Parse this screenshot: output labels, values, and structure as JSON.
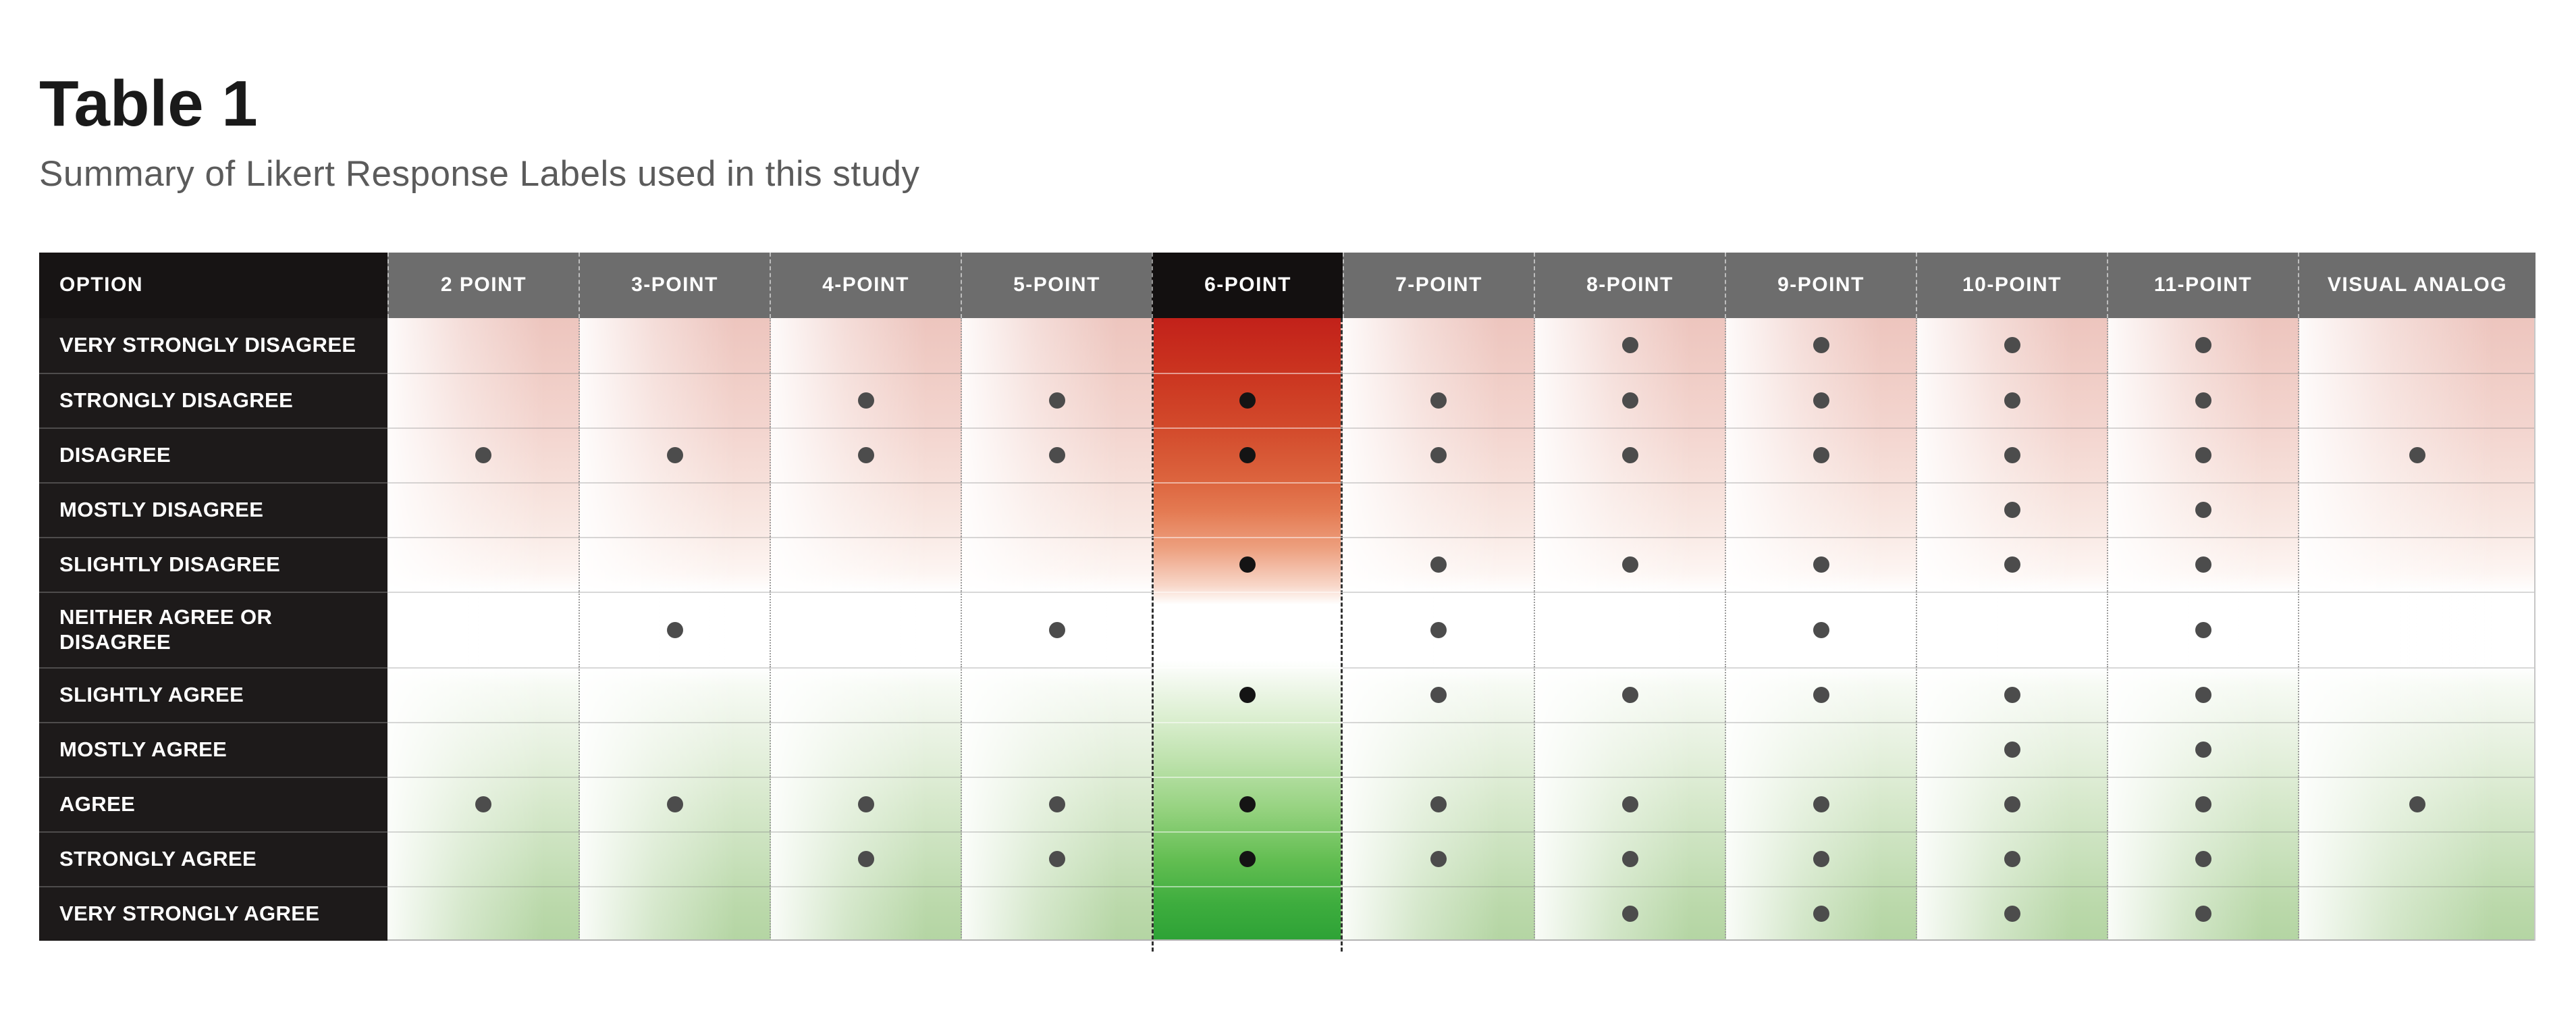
{
  "title": "Table 1",
  "subtitle": "Summary of Likert Response Labels used in this study",
  "table": {
    "option_header": "OPTION",
    "highlight_column": "6-POINT",
    "columns": [
      "2 POINT",
      "3-POINT",
      "4-POINT",
      "5-POINT",
      "6-POINT",
      "7-POINT",
      "8-POINT",
      "9-POINT",
      "10-POINT",
      "11-POINT",
      "VISUAL ANALOG"
    ],
    "rows": [
      {
        "label": "VERY STRONGLY DISAGREE",
        "dots": [
          0,
          0,
          0,
          0,
          0,
          0,
          1,
          1,
          1,
          1,
          0
        ]
      },
      {
        "label": "STRONGLY DISAGREE",
        "dots": [
          0,
          0,
          1,
          1,
          1,
          1,
          1,
          1,
          1,
          1,
          0
        ]
      },
      {
        "label": "DISAGREE",
        "dots": [
          1,
          1,
          1,
          1,
          1,
          1,
          1,
          1,
          1,
          1,
          1
        ]
      },
      {
        "label": "MOSTLY DISAGREE",
        "dots": [
          0,
          0,
          0,
          0,
          0,
          0,
          0,
          0,
          1,
          1,
          0
        ]
      },
      {
        "label": "SLIGHTLY DISAGREE",
        "dots": [
          0,
          0,
          0,
          0,
          1,
          1,
          1,
          1,
          1,
          1,
          0
        ]
      },
      {
        "label": "NEITHER AGREE OR DISAGREE",
        "dots": [
          0,
          1,
          0,
          1,
          0,
          1,
          0,
          1,
          0,
          1,
          0
        ]
      },
      {
        "label": "SLIGHTLY AGREE",
        "dots": [
          0,
          0,
          0,
          0,
          1,
          1,
          1,
          1,
          1,
          1,
          0
        ]
      },
      {
        "label": "MOSTLY AGREE",
        "dots": [
          0,
          0,
          0,
          0,
          0,
          0,
          0,
          0,
          1,
          1,
          0
        ]
      },
      {
        "label": "AGREE",
        "dots": [
          1,
          1,
          1,
          1,
          1,
          1,
          1,
          1,
          1,
          1,
          1
        ]
      },
      {
        "label": "STRONGLY AGREE",
        "dots": [
          0,
          0,
          1,
          1,
          1,
          1,
          1,
          1,
          1,
          1,
          0
        ]
      },
      {
        "label": "VERY STRONGLY AGREE",
        "dots": [
          0,
          0,
          0,
          0,
          0,
          0,
          1,
          1,
          1,
          1,
          0
        ]
      }
    ]
  },
  "chart_data": {
    "type": "table",
    "title": "Table 1",
    "subtitle": "Summary of Likert Response Labels used in this study",
    "columns": [
      "2 POINT",
      "3-POINT",
      "4-POINT",
      "5-POINT",
      "6-POINT",
      "7-POINT",
      "8-POINT",
      "9-POINT",
      "10-POINT",
      "11-POINT",
      "VISUAL ANALOG"
    ],
    "highlighted_column": "6-POINT",
    "rows": [
      {
        "option": "VERY STRONGLY DISAGREE",
        "used_in": [
          "8-POINT",
          "9-POINT",
          "10-POINT",
          "11-POINT"
        ]
      },
      {
        "option": "STRONGLY DISAGREE",
        "used_in": [
          "4-POINT",
          "5-POINT",
          "6-POINT",
          "7-POINT",
          "8-POINT",
          "9-POINT",
          "10-POINT",
          "11-POINT"
        ]
      },
      {
        "option": "DISAGREE",
        "used_in": [
          "2 POINT",
          "3-POINT",
          "4-POINT",
          "5-POINT",
          "6-POINT",
          "7-POINT",
          "8-POINT",
          "9-POINT",
          "10-POINT",
          "11-POINT",
          "VISUAL ANALOG"
        ]
      },
      {
        "option": "MOSTLY DISAGREE",
        "used_in": [
          "10-POINT",
          "11-POINT"
        ]
      },
      {
        "option": "SLIGHTLY DISAGREE",
        "used_in": [
          "6-POINT",
          "7-POINT",
          "8-POINT",
          "9-POINT",
          "10-POINT",
          "11-POINT"
        ]
      },
      {
        "option": "NEITHER AGREE OR DISAGREE",
        "used_in": [
          "3-POINT",
          "5-POINT",
          "7-POINT",
          "9-POINT",
          "11-POINT"
        ]
      },
      {
        "option": "SLIGHTLY AGREE",
        "used_in": [
          "6-POINT",
          "7-POINT",
          "8-POINT",
          "9-POINT",
          "10-POINT",
          "11-POINT"
        ]
      },
      {
        "option": "MOSTLY AGREE",
        "used_in": [
          "10-POINT",
          "11-POINT"
        ]
      },
      {
        "option": "AGREE",
        "used_in": [
          "2 POINT",
          "3-POINT",
          "4-POINT",
          "5-POINT",
          "6-POINT",
          "7-POINT",
          "8-POINT",
          "9-POINT",
          "10-POINT",
          "11-POINT",
          "VISUAL ANALOG"
        ]
      },
      {
        "option": "STRONGLY AGREE",
        "used_in": [
          "4-POINT",
          "5-POINT",
          "6-POINT",
          "7-POINT",
          "8-POINT",
          "9-POINT",
          "10-POINT",
          "11-POINT"
        ]
      },
      {
        "option": "VERY STRONGLY AGREE",
        "used_in": [
          "8-POINT",
          "9-POINT",
          "10-POINT",
          "11-POINT"
        ]
      }
    ]
  },
  "colors": {
    "header_bg": "#6d6d6d",
    "header_highlight_bg": "#131010",
    "label_bg": "#1d1a1a",
    "dot": "#4c4c4c",
    "dot_highlight": "#141414",
    "red_strong": "#c2211a",
    "green_strong": "#2da236"
  }
}
